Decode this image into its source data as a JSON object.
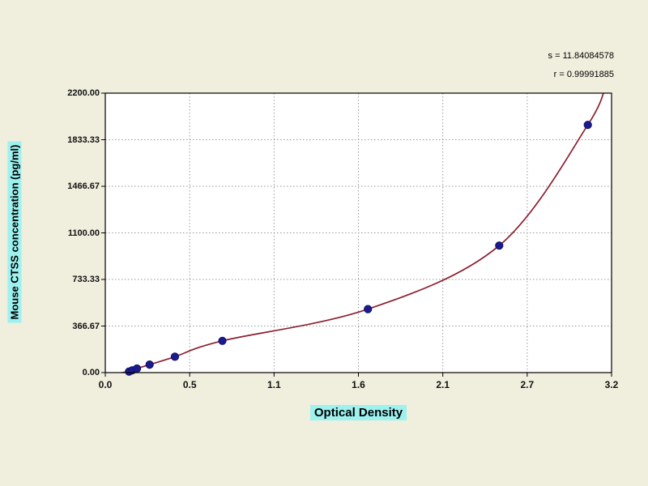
{
  "chart_data": {
    "type": "scatter",
    "title": "",
    "xlabel": "Optical Density",
    "ylabel": "Mouse CTSS concentration (pg/ml)",
    "xlim": [
      0.0,
      3.2
    ],
    "ylim": [
      0.0,
      2200.0
    ],
    "x_ticks": [
      "0.0",
      "0.5",
      "1.1",
      "1.6",
      "2.1",
      "2.7",
      "3.2"
    ],
    "y_ticks": [
      "0.00",
      "366.67",
      "733.33",
      "1100.00",
      "1466.67",
      "1833.33",
      "2200.00"
    ],
    "grid": true,
    "legend": "none",
    "points": [
      {
        "x": 0.15,
        "y": 8
      },
      {
        "x": 0.17,
        "y": 18
      },
      {
        "x": 0.2,
        "y": 32
      },
      {
        "x": 0.28,
        "y": 63
      },
      {
        "x": 0.44,
        "y": 125
      },
      {
        "x": 0.74,
        "y": 250
      },
      {
        "x": 1.66,
        "y": 500
      },
      {
        "x": 2.49,
        "y": 1000
      },
      {
        "x": 3.05,
        "y": 1950
      }
    ],
    "curve_start": {
      "x": 0.08,
      "y": -5
    },
    "curve_extends_to": {
      "x": 3.17,
      "y": 2300
    },
    "annotations": [
      {
        "text": "s = 11.84084578"
      },
      {
        "text": "r = 0.99991885"
      }
    ],
    "point_color": "#1b1b8e",
    "point_edge_color": "#10106a",
    "curve_color": "#8a2030",
    "grid_color": "#9a9a9a",
    "background": "#f0eedd",
    "plot_background": "#ffffff",
    "label_highlight": "#9df1ef"
  }
}
